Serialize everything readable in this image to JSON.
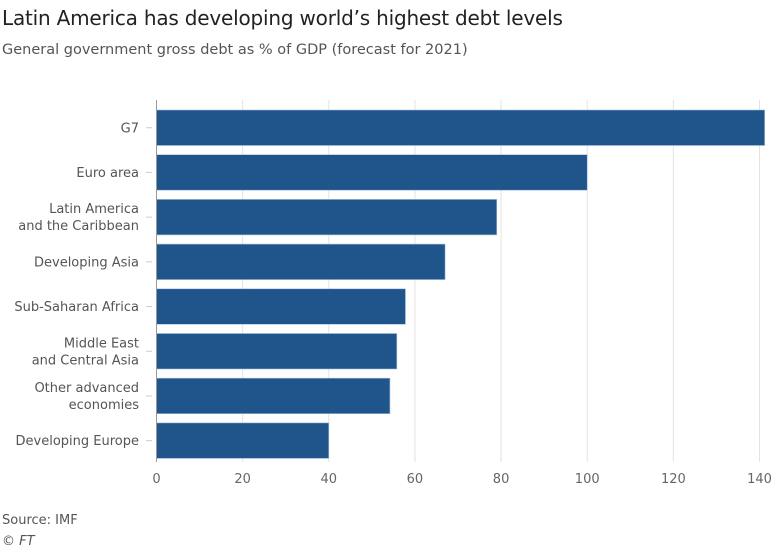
{
  "chart_data": {
    "type": "bar",
    "orientation": "horizontal",
    "title": "Latin America has developing world’s highest debt levels",
    "subtitle": "General government gross debt as % of GDP (forecast for 2021)",
    "categories": [
      [
        "G7"
      ],
      [
        "Euro area"
      ],
      [
        "Latin America",
        "and the Caribbean"
      ],
      [
        "Developing Asia"
      ],
      [
        "Sub-Saharan Africa"
      ],
      [
        "Middle East",
        "and Central Asia"
      ],
      [
        "Other advanced",
        "economies"
      ],
      [
        "Developing Europe"
      ]
    ],
    "values": [
      141.2,
      100,
      79,
      67,
      57.8,
      55.8,
      54.2,
      40
    ],
    "xlim": [
      0,
      140
    ],
    "xticks": [
      0,
      20,
      40,
      60,
      80,
      100,
      120,
      140
    ],
    "xlabel": "",
    "ylabel": "",
    "grid": "vertical",
    "bar_color": "#1f558b",
    "source": "Source: IMF",
    "credit": "© FT"
  }
}
